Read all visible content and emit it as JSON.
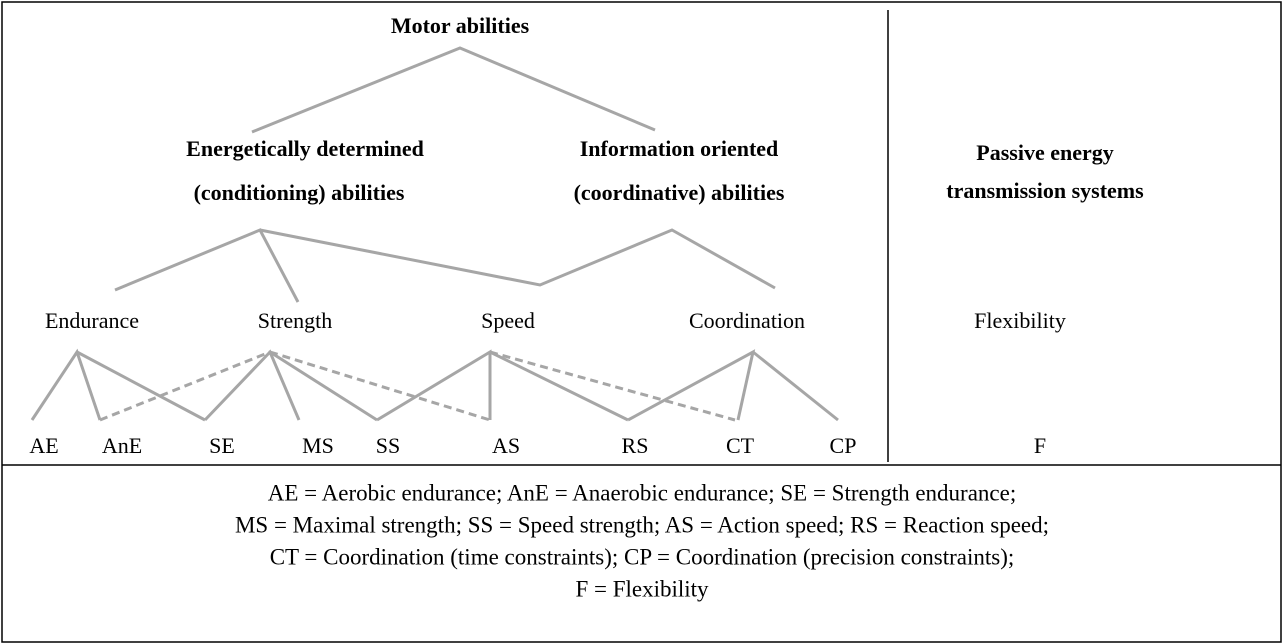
{
  "title": "Motor abilities",
  "groups": [
    {
      "lines": [
        "Energetically determined",
        "(conditioning) abilities"
      ]
    },
    {
      "lines": [
        "Information oriented",
        "(coordinative) abilities"
      ]
    },
    {
      "lines": [
        "Passive energy",
        "transmission systems"
      ]
    }
  ],
  "abilities": [
    "Endurance",
    "Strength",
    "Speed",
    "Coordination",
    "Flexibility"
  ],
  "codes": [
    "AE",
    "AnE",
    "SE",
    "MS",
    "SS",
    "AS",
    "RS",
    "CT",
    "CP",
    "F"
  ],
  "legend": [
    "AE = Aerobic endurance; AnE = Anaerobic endurance; SE = Strength endurance;",
    "MS = Maximal strength; SS = Speed strength; AS = Action speed; RS = Reaction speed;",
    "CT = Coordination (time constraints); CP = Coordination (precision constraints);",
    "F = Flexibility"
  ]
}
